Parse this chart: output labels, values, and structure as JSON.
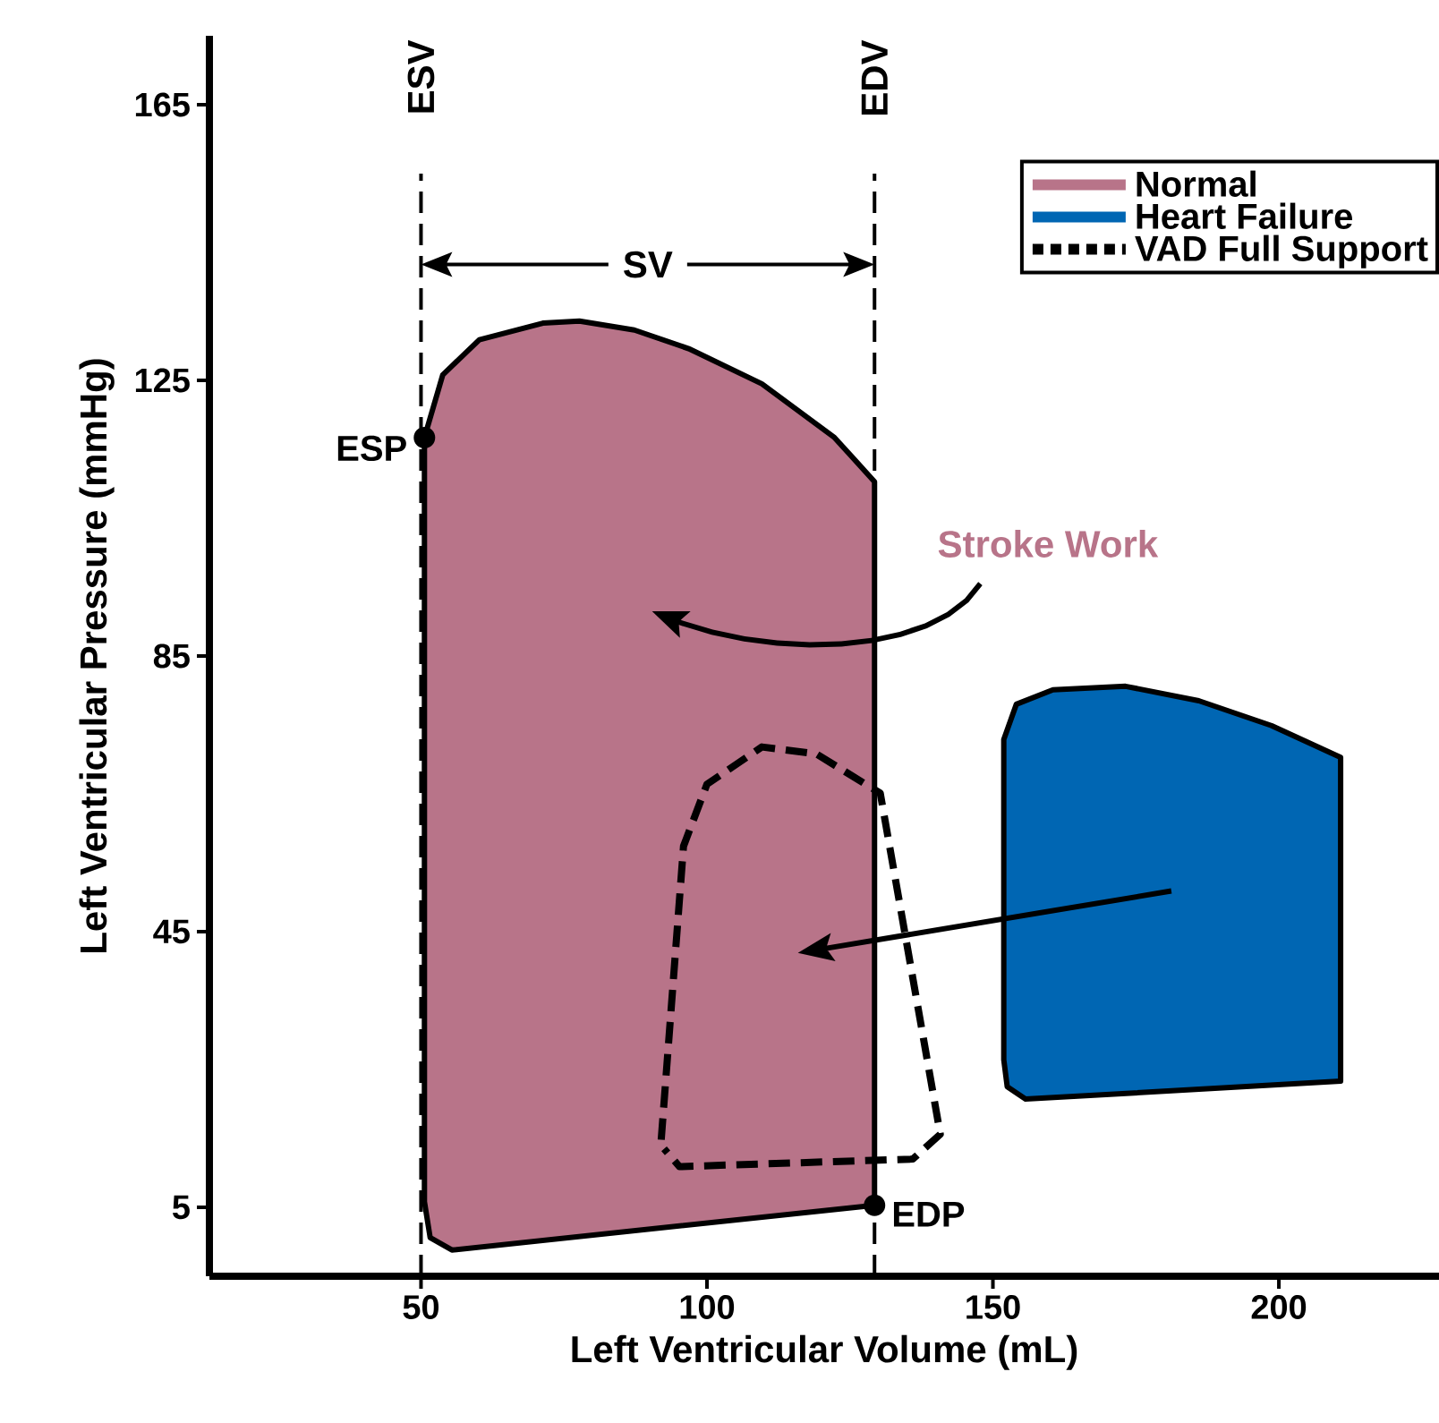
{
  "chart_data": {
    "type": "area",
    "xlabel": "Left Ventricular Volume (mL)",
    "ylabel": "Left Ventricular Pressure (mmHg)",
    "xlim": [
      13,
      228
    ],
    "ylim": [
      -5,
      175
    ],
    "xticks": [
      50,
      100,
      150,
      200
    ],
    "yticks": [
      5,
      45,
      85,
      125,
      165
    ],
    "grid": false,
    "legend": "top right",
    "series": [
      {
        "name": "Normal",
        "color": "#b87489",
        "x": [
          50.6,
          53.8,
          60.2,
          71.3,
          77.7,
          87.3,
          96.8,
          109.6,
          122.3,
          129.3,
          129.3,
          55.4,
          51.6,
          50.6
        ],
        "values": [
          116.7,
          125.8,
          130.9,
          133.3,
          133.6,
          132.3,
          129.6,
          124.5,
          116.7,
          110.3,
          5.3,
          -1.2,
          0.6,
          5.8
        ]
      },
      {
        "name": "Heart Failure",
        "color": "#0066b3",
        "x": [
          151.9,
          154.1,
          160.5,
          173.2,
          186,
          198.7,
          210.8,
          210.8,
          155.7,
          152.5,
          151.9
        ],
        "values": [
          72.9,
          78,
          80.1,
          80.6,
          78.5,
          74.9,
          70.3,
          23.3,
          20.7,
          22.5,
          26.4
        ]
      },
      {
        "name": "VAD Full Support",
        "color": "#000000",
        "type": "line",
        "line_style": "dashed",
        "x": [
          92,
          95.9,
          100,
          109.6,
          119.1,
          130.3,
          140.8,
          136,
          95.2,
          92.5
        ],
        "values": [
          14.8,
          57.4,
          66.4,
          71.8,
          70.8,
          65.1,
          15.6,
          12,
          10.9,
          13.5
        ]
      }
    ],
    "ref_lines": [
      {
        "axis": "x",
        "value": 50,
        "label": "ESV",
        "line_style": "dashed"
      },
      {
        "axis": "x",
        "value": 129.3,
        "label": "EDV",
        "line_style": "dashed"
      }
    ],
    "annotations": [
      {
        "text": "ESP",
        "x": 50.6,
        "y": 116.7
      },
      {
        "text": "EDP",
        "x": 129.3,
        "y": 5.3
      },
      "SV",
      "Stroke Work"
    ]
  }
}
